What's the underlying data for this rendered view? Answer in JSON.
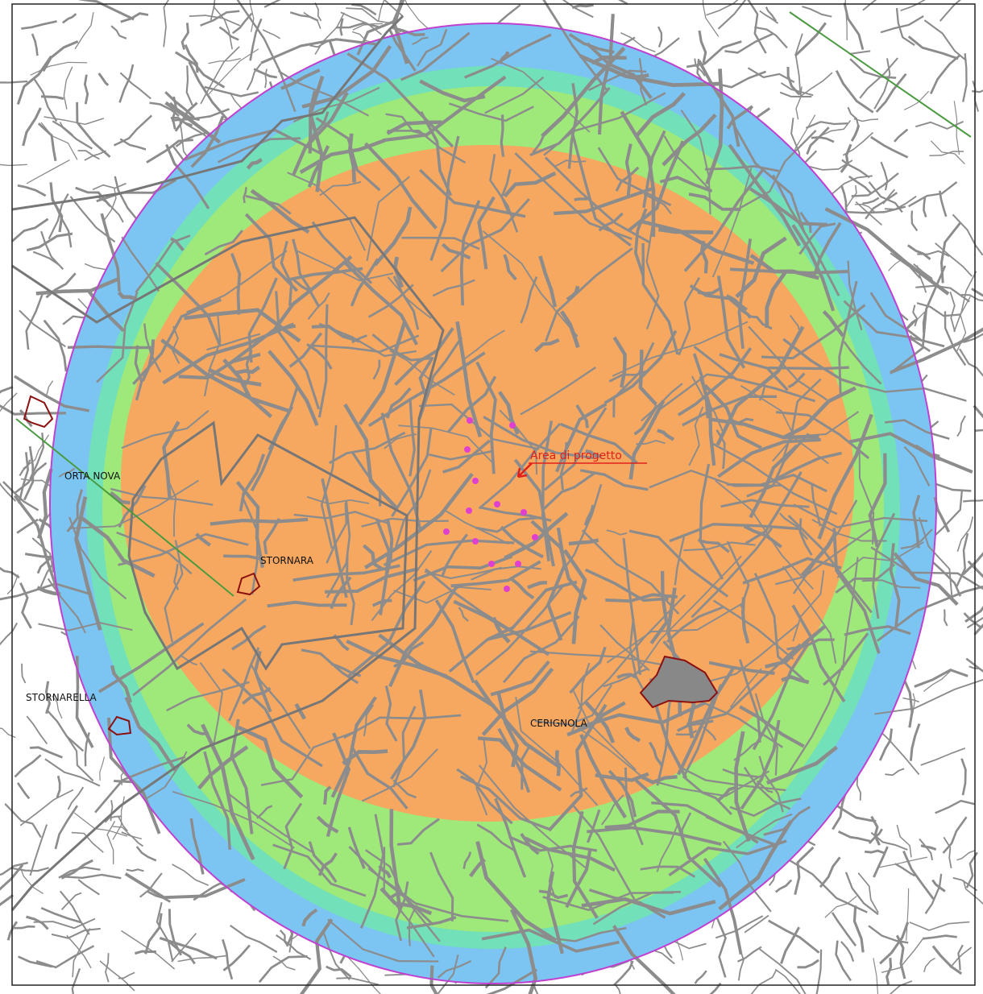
{
  "map": {
    "labels": {
      "orta_nova": "ORTA NOVA",
      "stornara": "STORNARA",
      "stornarella": "STORNARELLA",
      "cerignola": "CERIGNOLA",
      "project_area": "Area di progetto"
    }
  }
}
